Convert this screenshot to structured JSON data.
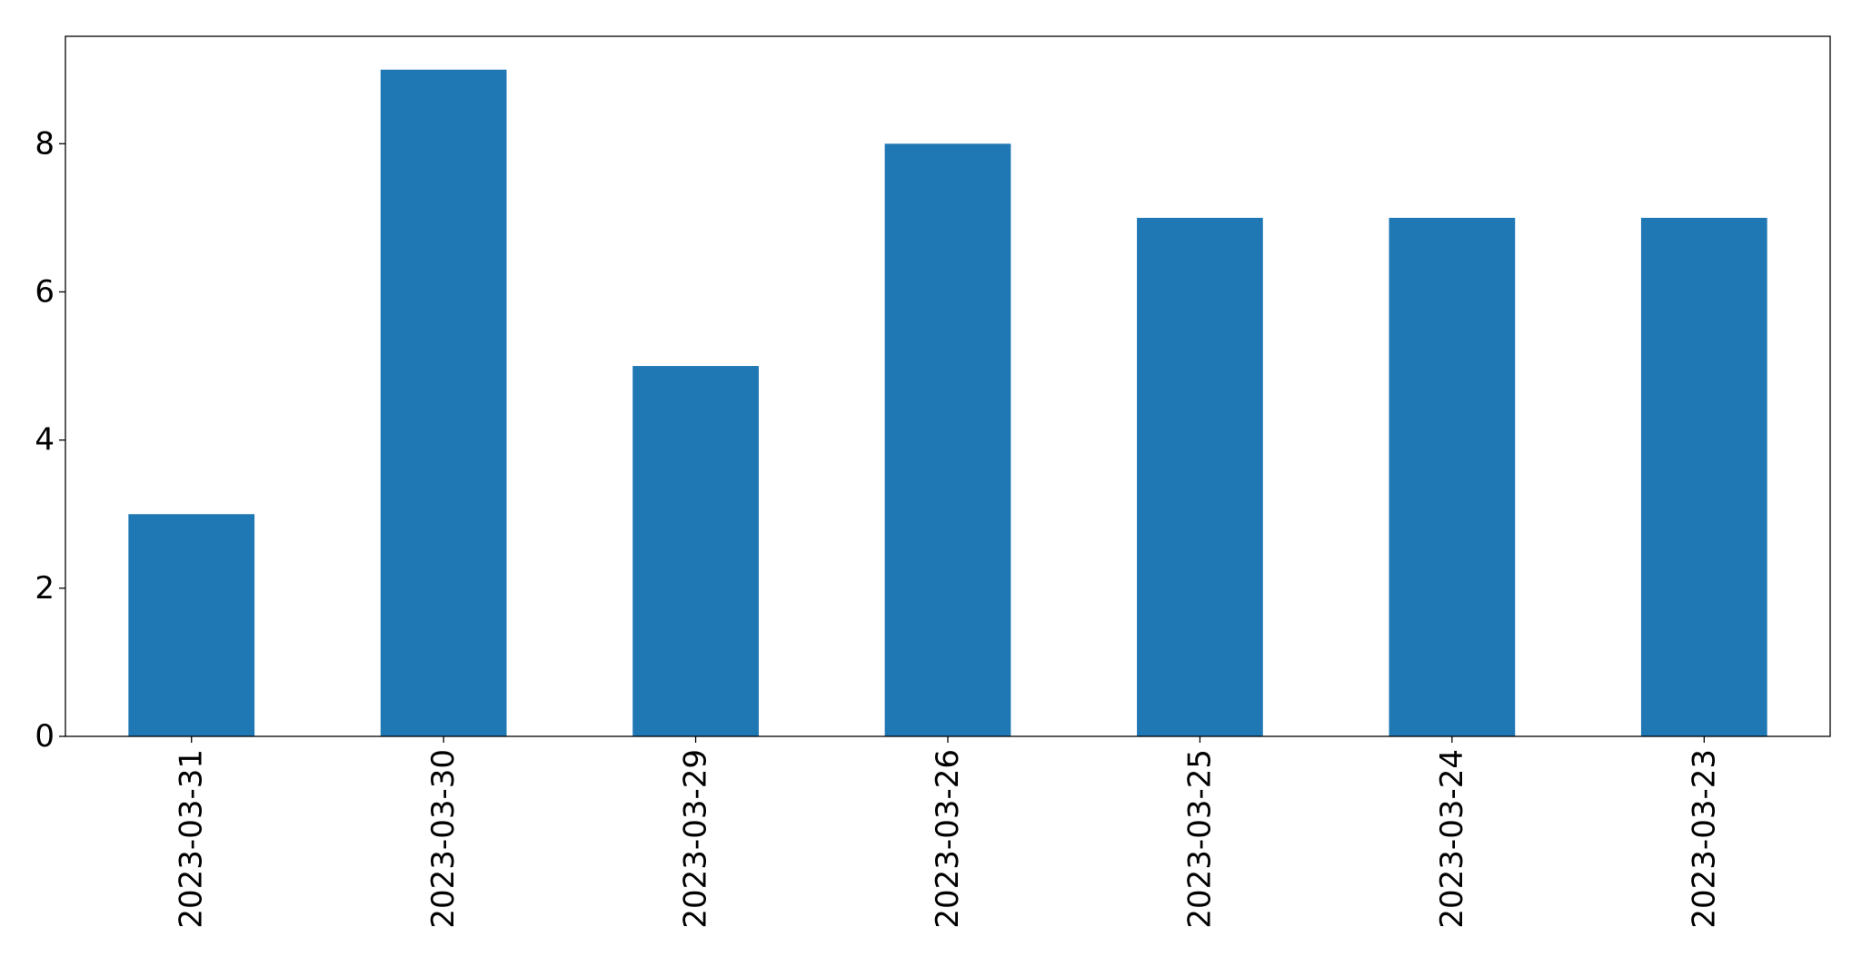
{
  "chart_data": {
    "type": "bar",
    "title": "",
    "xlabel": "",
    "ylabel": "",
    "categories": [
      "2023-03-31",
      "2023-03-30",
      "2023-03-29",
      "2023-03-26",
      "2023-03-25",
      "2023-03-24",
      "2023-03-23"
    ],
    "values": [
      3,
      9,
      5,
      8,
      7,
      7,
      7
    ],
    "ylim": [
      0,
      9.45
    ],
    "yticks": [
      0,
      2,
      4,
      6,
      8
    ],
    "ytick_labels": [
      "0",
      "2",
      "4",
      "6",
      "8"
    ],
    "bar_color": "#1f77b4",
    "grid": false,
    "legend": "none"
  }
}
